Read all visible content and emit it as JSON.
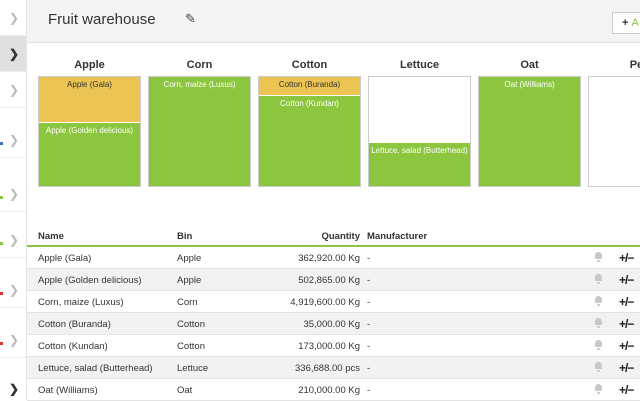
{
  "header": {
    "title": "Fruit warehouse",
    "add_label": "A"
  },
  "colors": {
    "green": "#8cc63f",
    "yellow": "#ebc454",
    "accent": "#8cc63f"
  },
  "bins": [
    {
      "name": "Apple",
      "segments": [
        {
          "label": "Apple (Gala)",
          "fill": 0.42,
          "color": "yellow"
        },
        {
          "label": "Apple (Golden delicious)",
          "fill": 0.58,
          "color": "green"
        }
      ]
    },
    {
      "name": "Corn",
      "segments": [
        {
          "label": "Corn, maize (Luxus)",
          "fill": 1.0,
          "color": "green"
        }
      ]
    },
    {
      "name": "Cotton",
      "segments": [
        {
          "label": "Cotton (Buranda)",
          "fill": 0.17,
          "color": "yellow"
        },
        {
          "label": "Cotton (Kundan)",
          "fill": 0.83,
          "color": "green"
        }
      ]
    },
    {
      "name": "Lettuce",
      "segments": [
        {
          "label": "Lettuce, salad (Butterhead)",
          "fill": 0.39,
          "color": "green"
        }
      ]
    },
    {
      "name": "Oat",
      "segments": [
        {
          "label": "Oat (Williams)",
          "fill": 1.0,
          "color": "green"
        }
      ]
    },
    {
      "name": "Pea",
      "segments": []
    }
  ],
  "table": {
    "columns": {
      "name": "Name",
      "bin": "Bin",
      "quantity": "Quantity",
      "manufacturer": "Manufacturer"
    },
    "rows": [
      {
        "name": "Apple (Gala)",
        "bin": "Apple",
        "quantity": "362,920.00 Kg",
        "manufacturer": "-"
      },
      {
        "name": "Apple (Golden delicious)",
        "bin": "Apple",
        "quantity": "502,865.00 Kg",
        "manufacturer": "-"
      },
      {
        "name": "Corn, maize (Luxus)",
        "bin": "Corn",
        "quantity": "4,919,600.00 Kg",
        "manufacturer": "-"
      },
      {
        "name": "Cotton (Buranda)",
        "bin": "Cotton",
        "quantity": "35,000.00 Kg",
        "manufacturer": "-"
      },
      {
        "name": "Cotton (Kundan)",
        "bin": "Cotton",
        "quantity": "173,000.00 Kg",
        "manufacturer": "-"
      },
      {
        "name": "Lettuce, salad (Butterhead)",
        "bin": "Lettuce",
        "quantity": "336,688.00 pcs",
        "manufacturer": "-"
      },
      {
        "name": "Oat (Williams)",
        "bin": "Oat",
        "quantity": "210,000.00 Kg",
        "manufacturer": "-"
      }
    ],
    "row_action_label": "+/−"
  },
  "icons": {
    "pencil": "pencil-icon",
    "bell": "bell-icon",
    "chevron": "chevron-right-icon"
  }
}
